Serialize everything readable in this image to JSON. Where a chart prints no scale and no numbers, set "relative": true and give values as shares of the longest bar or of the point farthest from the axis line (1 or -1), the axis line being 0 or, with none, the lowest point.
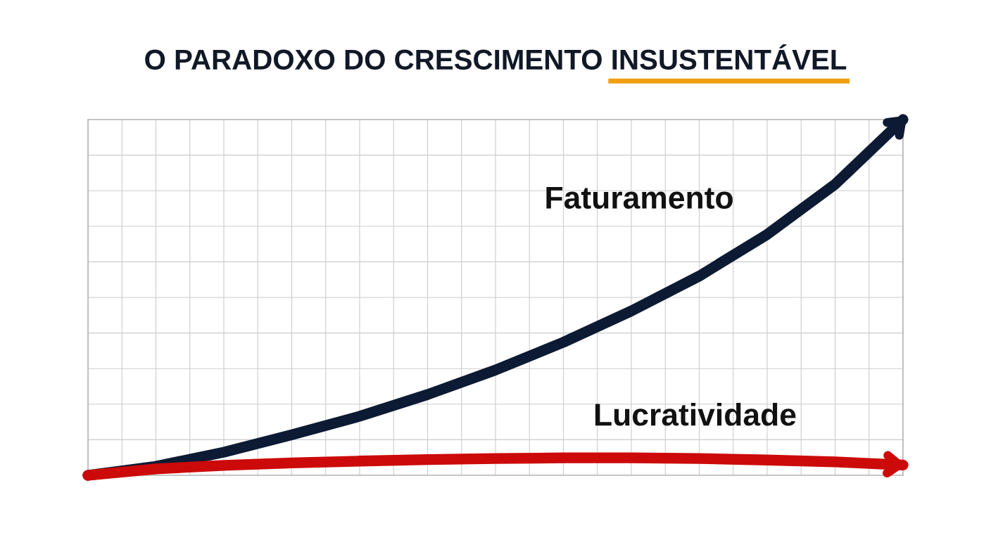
{
  "chart_data": {
    "type": "line",
    "title": "O PARADOXO DO CRESCIMENTO INSUSTENTÁVEL",
    "relative": true,
    "grid": true,
    "legend": false,
    "line_style": "solid",
    "categories": [
      null,
      null,
      null,
      null,
      null,
      null,
      null,
      null,
      null,
      null,
      null,
      null,
      null
    ],
    "series": [
      {
        "name": "Faturamento",
        "color": "#0d1a33",
        "values": [
          0,
          0.025,
          0.065,
          0.114,
          0.166,
          0.227,
          0.296,
          0.374,
          0.462,
          0.56,
          0.677,
          0.818,
          1
        ]
      },
      {
        "name": "Lucratividade",
        "color": "#cc0a0a",
        "values": [
          0,
          0.018,
          0.028,
          0.035,
          0.04,
          0.044,
          0.047,
          0.049,
          0.049,
          0.047,
          0.043,
          0.038,
          0.029
        ]
      }
    ]
  }
}
